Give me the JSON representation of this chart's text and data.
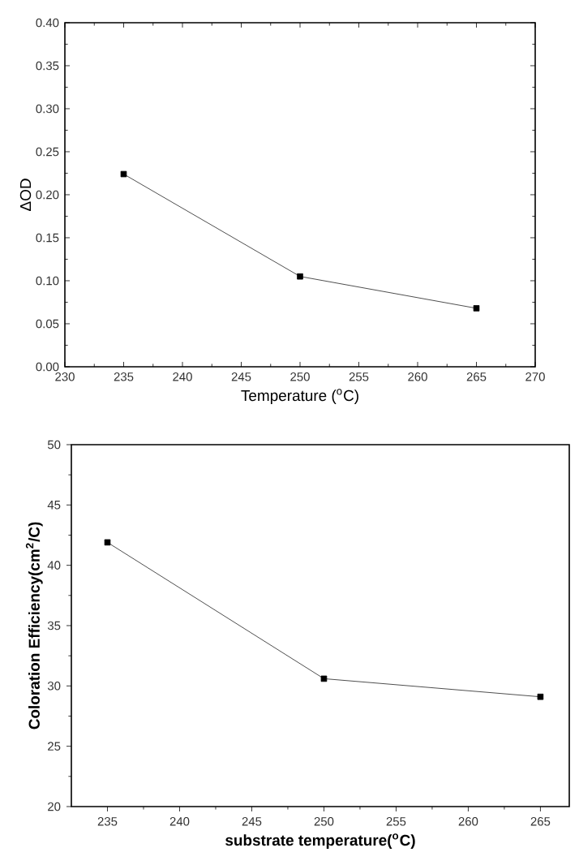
{
  "chart_data": [
    {
      "type": "line",
      "xlabel": "Temperature ($^{o}$C)",
      "ylabel": "ΔOD",
      "x": [
        235,
        250,
        265
      ],
      "series": [
        {
          "color": "#222222",
          "values": [
            0.224,
            0.105,
            0.068
          ]
        }
      ],
      "xlim": [
        230,
        270
      ],
      "xticks": [
        230,
        235,
        240,
        245,
        250,
        255,
        260,
        265,
        270
      ],
      "ylim": [
        0,
        0.4
      ],
      "yticks": [
        {
          "value": 0,
          "label": "0.00"
        },
        {
          "value": 0.05,
          "label": "0.05"
        },
        {
          "value": 0.1,
          "label": "0.10"
        },
        {
          "value": 0.15,
          "label": "0.15"
        },
        {
          "value": 0.2,
          "label": "0.20"
        },
        {
          "value": 0.25,
          "label": "0.25"
        },
        {
          "value": 0.3,
          "label": "0.30"
        },
        {
          "value": 0.35,
          "label": "0.35"
        },
        {
          "value": 0.4,
          "label": "0.40"
        }
      ],
      "marker": "square",
      "line_style": "solid"
    },
    {
      "type": "line",
      "xlabel": "substrate temperature($^{o}$C)",
      "ylabel": "Coloration Efficiency(cm$^{2}$/C)",
      "x": [
        235,
        250,
        265
      ],
      "series": [
        {
          "color": "#222222",
          "values": [
            41.9,
            30.6,
            29.1
          ]
        }
      ],
      "xlim": [
        232.5,
        267
      ],
      "xticks": [
        235,
        240,
        245,
        250,
        255,
        260,
        265
      ],
      "ylim": [
        20,
        50
      ],
      "yticks": [
        20,
        25,
        30,
        35,
        40,
        45,
        50
      ],
      "marker": "square",
      "line_style": "solid"
    }
  ]
}
